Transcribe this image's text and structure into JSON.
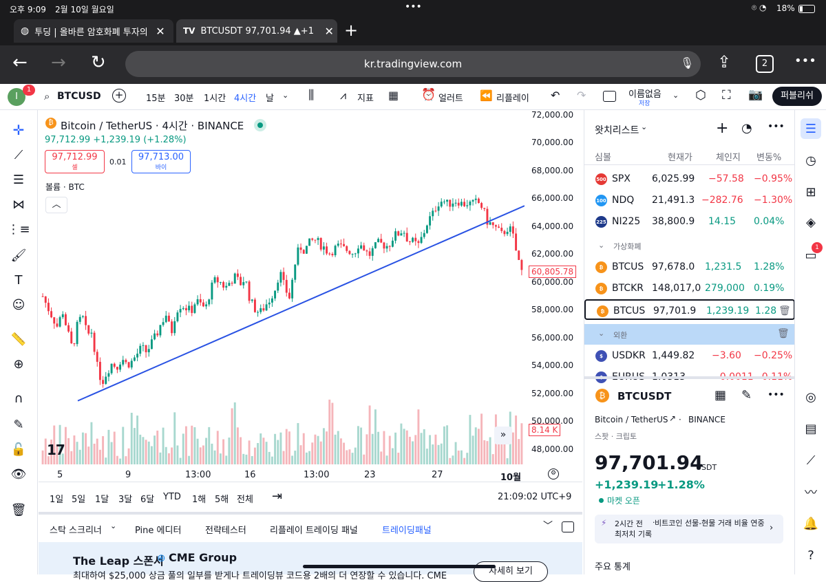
{
  "status": {
    "time": "오후 9:09",
    "date": "2월 10일 월요일",
    "battery": "18%"
  },
  "tabs": [
    {
      "title": "투딩 | 올바른 암호화폐 투자의"
    },
    {
      "title": "BTCUSDT 97,701.94 ▲+1"
    }
  ],
  "address": {
    "url": "kr.tradingview.com",
    "tab_count": "2"
  },
  "toolbar": {
    "symbol": "BTCUSD",
    "intervals": [
      "15분",
      "30분",
      "1시간",
      "4시간",
      "날"
    ],
    "indicators": "지표",
    "alert": "얼러트",
    "replay": "리플레이",
    "layout_name": "이름없음",
    "layout_sub": "저장",
    "publish": "퍼블리쉬",
    "avatar_letter": "I",
    "notif_count": "1"
  },
  "legend": {
    "title": "Bitcoin / TetherUS · 4시간 · BINANCE",
    "price_line": "97,712.99 +1,239.19 (+1.28%)",
    "sell_price": "97,712.99",
    "sell_label": "셀",
    "spread": "0.01",
    "buy_price": "97,713.00",
    "buy_label": "바이",
    "volume": "볼륨 · BTC"
  },
  "chart_data": {
    "type": "candlestick",
    "ylim": [
      47000,
      72500
    ],
    "y_ticks": [
      "72,000.00",
      "70,000.00",
      "68,000.00",
      "66,000.00",
      "64,000.00",
      "62,000.00",
      "60,000.00",
      "58,000.00",
      "56,000.00",
      "54,000.00",
      "52,000.00",
      "50,000.00",
      "48,000.00"
    ],
    "x_ticks": [
      "5",
      "9",
      "13:00",
      "16",
      "13:00",
      "23",
      "27",
      "10월"
    ],
    "current_price": "60,805.78",
    "volume_label": "8.14 K",
    "close_path": [
      59000,
      58200,
      57500,
      56800,
      58000,
      56500,
      55200,
      56900,
      57600,
      56200,
      56500,
      54000,
      52800,
      53600,
      54200,
      53900,
      54600,
      54100,
      54300,
      54800,
      55300,
      55000,
      55600,
      56200,
      57100,
      57700,
      56300,
      58000,
      58400,
      58200,
      57900,
      58700,
      58400,
      58100,
      59500,
      60200,
      60000,
      59600,
      60100,
      60400,
      59900,
      60300,
      58700,
      58100,
      57800,
      58300,
      58800,
      59500,
      60800,
      59600,
      58900,
      61200,
      62600,
      62300,
      62800,
      63100,
      62800,
      62500,
      62100,
      62400,
      62600,
      62400,
      62300,
      62100,
      62800,
      62500,
      61900,
      62400,
      62800,
      62700,
      62600,
      63300,
      63500,
      63800,
      63000,
      62900,
      62600,
      63400,
      64400,
      64900,
      65700,
      65900,
      65600,
      65800,
      65900,
      65600,
      65700,
      65600,
      65800,
      65400,
      64400,
      64100,
      63800,
      63400,
      63900,
      63700,
      62000,
      60800
    ],
    "trendline": [
      [
        52000,
        65500
      ]
    ]
  },
  "timebar": {
    "ranges": [
      "1일",
      "5일",
      "1달",
      "3달",
      "6달",
      "YTD",
      "1해",
      "5해",
      "전체"
    ],
    "clock": "21:09:02 UTC+9"
  },
  "bottom_tabs": [
    "스탁 스크리너",
    "Pine 에디터",
    "전략테스터",
    "리플레이 트레이딩 패널",
    "트레이딩패널"
  ],
  "banner": {
    "title": "The Leap 스폰서",
    "sponsor": "CME Group",
    "text": "최대하여 $25,000 상금 풀의 일부를 받게나 트레이딩뷰 코드용 2배의 더 연장할 수 있습니다. CME",
    "button": "자세히 보기"
  },
  "watchlist": {
    "title": "왓치리스트",
    "columns": [
      "심볼",
      "현재가",
      "체인지",
      "변동%"
    ],
    "rows": [
      {
        "badge": "500",
        "badge_color": "#e53935",
        "symbol": "SPX",
        "price": "6,025.99",
        "change": "−57.58",
        "pct": "−0.95%",
        "dir": "down"
      },
      {
        "badge": "100",
        "badge_color": "#2196f3",
        "symbol": "NDQ",
        "price": "21,491.3",
        "change": "−282.76",
        "pct": "−1.30%",
        "dir": "down"
      },
      {
        "badge": "225",
        "badge_color": "#1e3a8a",
        "symbol": "NI225",
        "price": "38,800.9",
        "change": "14.15",
        "pct": "0.04%",
        "dir": "up"
      }
    ],
    "section_crypto": "가상화폐",
    "crypto_rows": [
      {
        "symbol": "BTCUS",
        "price": "97,678.0",
        "change": "1,231.5",
        "pct": "1.28%"
      },
      {
        "symbol": "BTCKR",
        "price": "148,017,0",
        "change": "279,000",
        "pct": "0.19%"
      },
      {
        "symbol": "BTCUS",
        "price": "97,701.9",
        "change": "1,239.19",
        "pct": "1.28"
      }
    ],
    "section_fx": "외환",
    "fx_rows": [
      {
        "symbol": "USDKR",
        "price": "1,449.82",
        "change": "−3.60",
        "pct": "−0.25%"
      },
      {
        "symbol": "EURUS",
        "price": "1.0313",
        "change": "−0.0011",
        "pct": "−0.11%"
      }
    ]
  },
  "detail": {
    "symbol": "BTCUSDT",
    "name": "Bitcoin / TetherUS",
    "exchange": "BINANCE",
    "type": "스팟 · 크립토",
    "price": "97,701.94",
    "currency": "USDT",
    "change": "+1,239.19",
    "pct": "+1.28%",
    "market": "마켓 오픈",
    "news_time": "2시간 전",
    "news_text": "비트코인 선물-현물 거래 비율 연중 최저치 기록",
    "stats": "주요 통계"
  },
  "colors": {
    "up": "#089981",
    "down": "#f23645",
    "accent": "#2962ff",
    "trend": "#2952e3"
  }
}
